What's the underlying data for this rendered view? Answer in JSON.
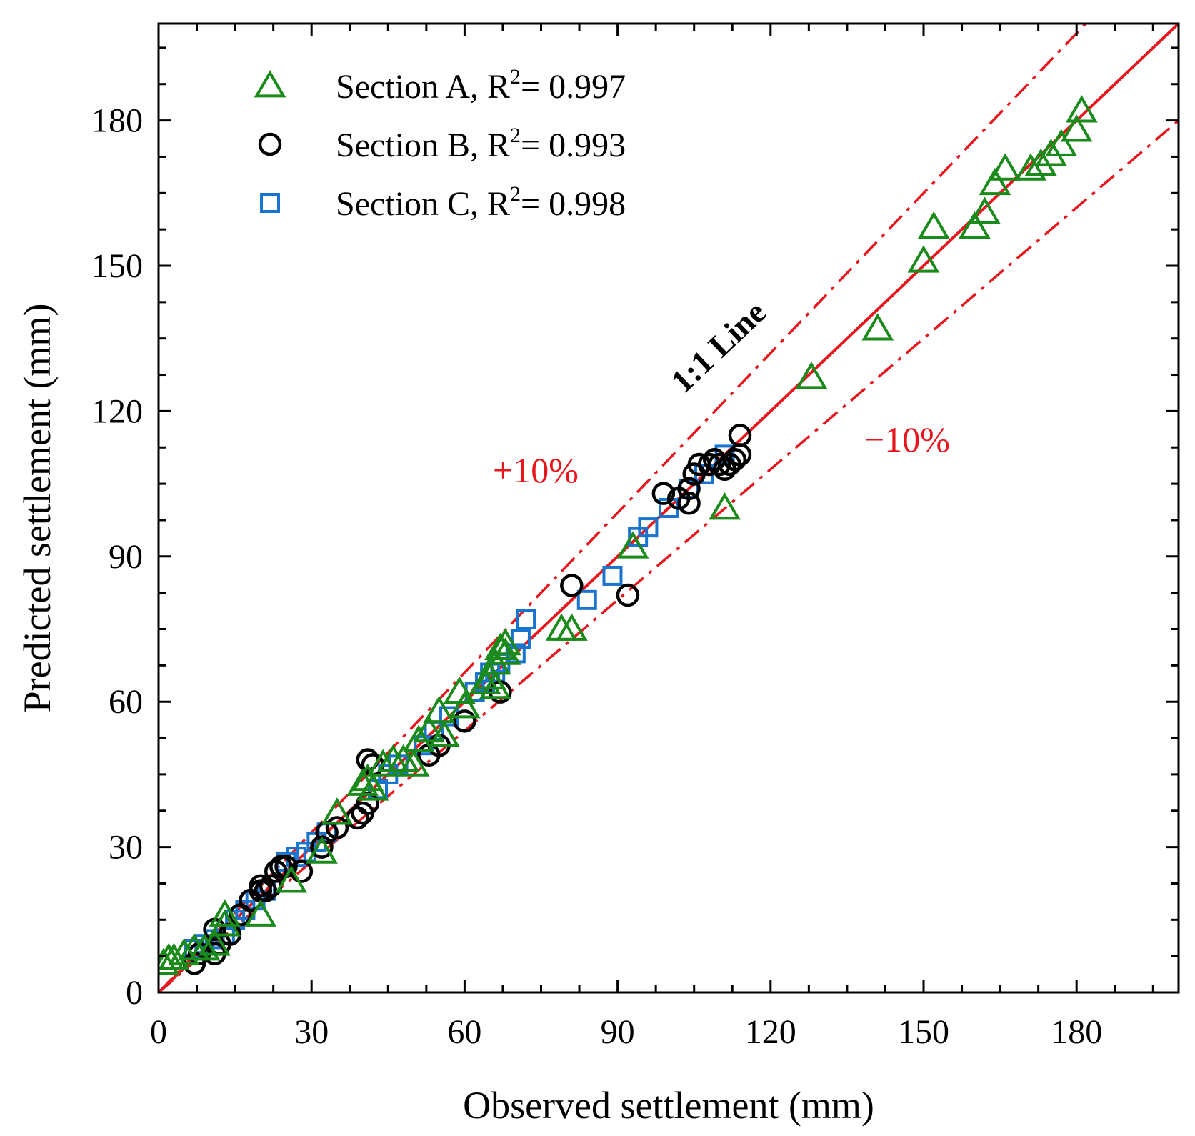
{
  "chart_data": {
    "type": "scatter",
    "xlabel": "Observed settlement (mm)",
    "ylabel": "Predicted settlement (mm)",
    "xlim": [
      0,
      200
    ],
    "ylim": [
      0,
      200
    ],
    "xticks": [
      0,
      30,
      60,
      90,
      120,
      150,
      180
    ],
    "yticks": [
      0,
      30,
      60,
      90,
      120,
      150,
      180
    ],
    "grid": false,
    "legend_position": "top-left",
    "series": [
      {
        "name": "Section A",
        "r2_prefix": "R",
        "r2_sup": "2",
        "r2_value": "= 0.997",
        "marker": "triangle",
        "color": "#1a8a1a",
        "points": [
          [
            1,
            6
          ],
          [
            2,
            7
          ],
          [
            3,
            7
          ],
          [
            5,
            8
          ],
          [
            7,
            9
          ],
          [
            9,
            9
          ],
          [
            11,
            10
          ],
          [
            13,
            14
          ],
          [
            13,
            16
          ],
          [
            20,
            16
          ],
          [
            26,
            23
          ],
          [
            32,
            29
          ],
          [
            35,
            37
          ],
          [
            40,
            43
          ],
          [
            41,
            44
          ],
          [
            42,
            42
          ],
          [
            44,
            47
          ],
          [
            46,
            48
          ],
          [
            48,
            48
          ],
          [
            50,
            47
          ],
          [
            51,
            52
          ],
          [
            53,
            54
          ],
          [
            55,
            58
          ],
          [
            56,
            53
          ],
          [
            59,
            62
          ],
          [
            60,
            59
          ],
          [
            64,
            64
          ],
          [
            65,
            65
          ],
          [
            66,
            63
          ],
          [
            66,
            68
          ],
          [
            67,
            71
          ],
          [
            68,
            70
          ],
          [
            68,
            72
          ],
          [
            79,
            75
          ],
          [
            81,
            75
          ],
          [
            93,
            92
          ],
          [
            111,
            100
          ],
          [
            128,
            127
          ],
          [
            141,
            137
          ],
          [
            150,
            151
          ],
          [
            152,
            158
          ],
          [
            160,
            158
          ],
          [
            162,
            161
          ],
          [
            164,
            167
          ],
          [
            166,
            170
          ],
          [
            171,
            170
          ],
          [
            173,
            171
          ],
          [
            175,
            173
          ],
          [
            177,
            175
          ],
          [
            180,
            178
          ],
          [
            181,
            182
          ]
        ]
      },
      {
        "name": "Section B",
        "r2_prefix": "R",
        "r2_sup": "2",
        "r2_value": "= 0.993",
        "marker": "circle",
        "color": "#000000",
        "points": [
          [
            7,
            6
          ],
          [
            8,
            8
          ],
          [
            11,
            13
          ],
          [
            11,
            8
          ],
          [
            12,
            10
          ],
          [
            14,
            12
          ],
          [
            16,
            16
          ],
          [
            18,
            19
          ],
          [
            20,
            22
          ],
          [
            20,
            21
          ],
          [
            21,
            21
          ],
          [
            22,
            22
          ],
          [
            23,
            25
          ],
          [
            24,
            26
          ],
          [
            25,
            26
          ],
          [
            28,
            25
          ],
          [
            32,
            30
          ],
          [
            33,
            33
          ],
          [
            35,
            34
          ],
          [
            39,
            36
          ],
          [
            40,
            37
          ],
          [
            41,
            39
          ],
          [
            41,
            48
          ],
          [
            42,
            47
          ],
          [
            53,
            49
          ],
          [
            55,
            51
          ],
          [
            60,
            56
          ],
          [
            67,
            62
          ],
          [
            81,
            84
          ],
          [
            92,
            82
          ],
          [
            99,
            103
          ],
          [
            102,
            102
          ],
          [
            104,
            104
          ],
          [
            104,
            101
          ],
          [
            105,
            107
          ],
          [
            106,
            109
          ],
          [
            108,
            109
          ],
          [
            109,
            110
          ],
          [
            110,
            109
          ],
          [
            111,
            108
          ],
          [
            112,
            109
          ],
          [
            113,
            110
          ],
          [
            114,
            111
          ],
          [
            114,
            115
          ]
        ]
      },
      {
        "name": "Section C",
        "r2_prefix": "R",
        "r2_sup": "2",
        "r2_value": "= 0.998",
        "marker": "square",
        "color": "#1874cd",
        "points": [
          [
            7,
            9
          ],
          [
            9,
            10
          ],
          [
            11,
            11
          ],
          [
            13,
            12
          ],
          [
            15,
            15
          ],
          [
            17,
            17
          ],
          [
            19,
            19
          ],
          [
            21,
            21
          ],
          [
            25,
            27
          ],
          [
            27,
            28
          ],
          [
            29,
            29
          ],
          [
            31,
            31
          ],
          [
            33,
            33
          ],
          [
            43,
            42
          ],
          [
            45,
            45
          ],
          [
            47,
            47
          ],
          [
            52,
            51
          ],
          [
            54,
            54
          ],
          [
            57,
            57
          ],
          [
            62,
            62
          ],
          [
            64,
            64
          ],
          [
            65,
            66
          ],
          [
            66,
            66
          ],
          [
            67,
            68
          ],
          [
            70,
            70
          ],
          [
            71,
            73
          ],
          [
            72,
            77
          ],
          [
            84,
            81
          ],
          [
            89,
            86
          ],
          [
            94,
            94
          ],
          [
            96,
            96
          ],
          [
            100,
            100
          ],
          [
            104,
            104
          ],
          [
            107,
            107
          ],
          [
            111,
            111
          ]
        ]
      }
    ],
    "reference_lines": [
      {
        "name": "1:1",
        "label": "1:1 Line",
        "slope": 1.0,
        "style": "solid",
        "color": "#e8161c"
      },
      {
        "name": "plus10",
        "label": "+10%",
        "slope": 1.1,
        "style": "dashdot",
        "color": "#e8161c"
      },
      {
        "name": "minus10",
        "label": "−10%",
        "slope": 0.9,
        "style": "dashdot",
        "color": "#e8161c"
      }
    ]
  }
}
